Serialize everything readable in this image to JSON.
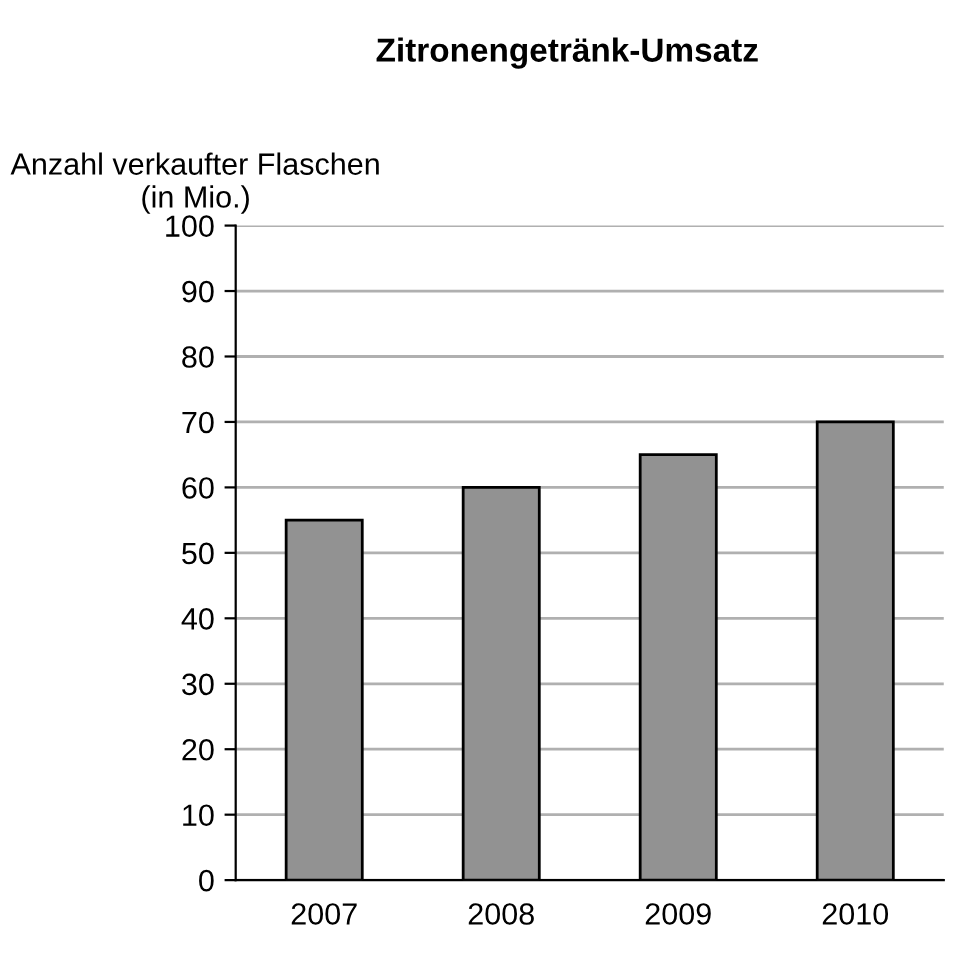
{
  "chart_data": {
    "type": "bar",
    "title": "Zitronengetränk-Umsatz",
    "ylabel": "Anzahl verkaufter Flaschen\n(in Mio.)",
    "categories": [
      "2007",
      "2008",
      "2009",
      "2010"
    ],
    "values": [
      55,
      60,
      65,
      70
    ],
    "color": "#929292",
    "ylim": [
      0,
      100
    ],
    "yticks": [
      0,
      10,
      20,
      30,
      40,
      50,
      60,
      70,
      80,
      90,
      100
    ],
    "grid": "y",
    "legend": false
  }
}
